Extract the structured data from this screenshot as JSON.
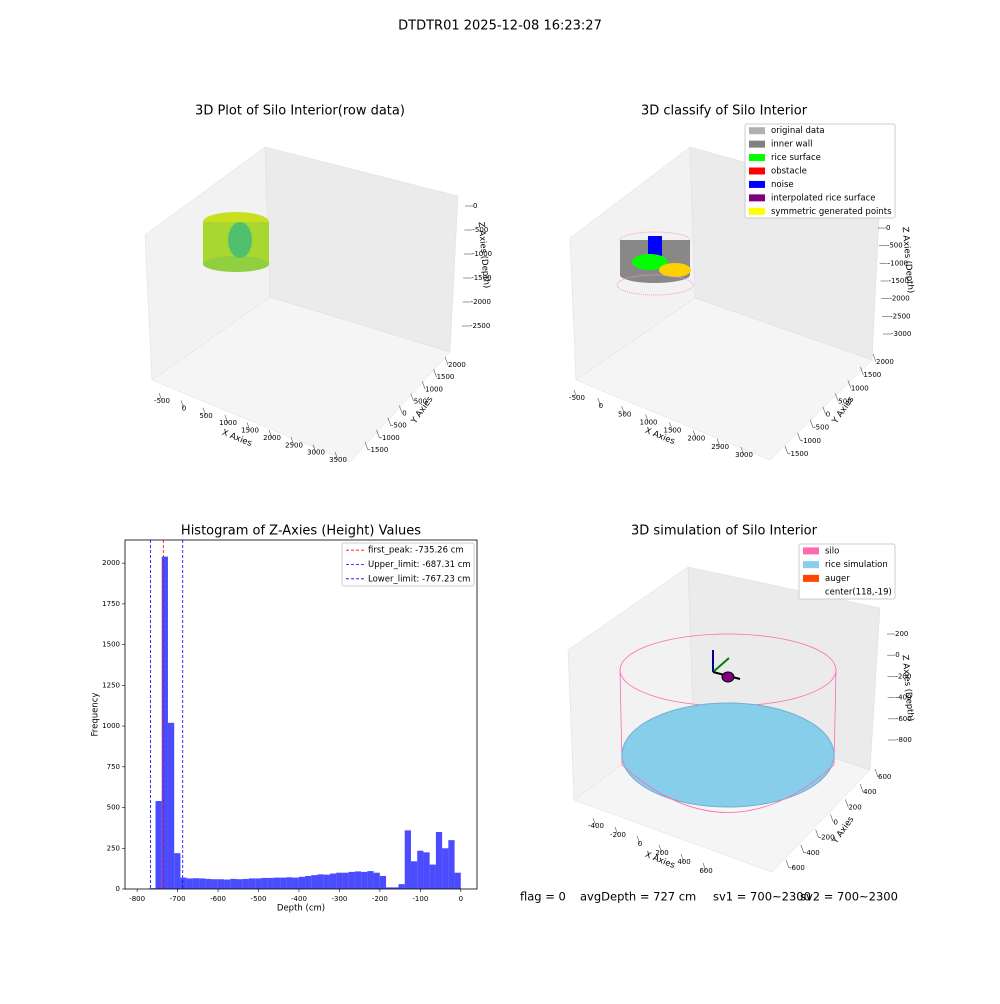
{
  "title": "DTDTR01 2025-12-08 16:23:27",
  "chart_data": [
    {
      "type": "scatter3d",
      "title": "3D Plot of Silo Interior(row data)",
      "xlabel": "X Axies",
      "ylabel": "Y Axies",
      "zlabel": "Z Axies (Depth)",
      "xticks": [
        -500,
        0,
        500,
        1000,
        1500,
        2000,
        2500,
        3000,
        3500
      ],
      "yticks": [
        -1500,
        -1000,
        -500,
        0,
        500,
        1000,
        1500,
        2000
      ],
      "zticks": [
        -2500,
        -2000,
        -1500,
        -1000,
        -500,
        0
      ]
    },
    {
      "type": "scatter3d",
      "title": "3D classify of Silo Interior",
      "xlabel": "X Axies",
      "ylabel": "Y Axies",
      "zlabel": "Z Axies (Depth)",
      "xticks": [
        -500,
        0,
        500,
        1000,
        1500,
        2000,
        2500,
        3000
      ],
      "yticks": [
        -1500,
        -1000,
        -500,
        0,
        500,
        1000,
        1500,
        2000
      ],
      "zticks": [
        -3000,
        -2500,
        -2000,
        -1500,
        -1000,
        -500,
        0
      ],
      "legend": [
        {
          "name": "original data",
          "color": "#b0b0b0"
        },
        {
          "name": "inner wall",
          "color": "#808080"
        },
        {
          "name": "rice surface",
          "color": "#00ff00"
        },
        {
          "name": "obstacle",
          "color": "#ff0000"
        },
        {
          "name": "noise",
          "color": "#0000ff"
        },
        {
          "name": "interpolated rice surface",
          "color": "#800080"
        },
        {
          "name": "symmetric generated points",
          "color": "#ffff00"
        }
      ]
    },
    {
      "type": "histogram",
      "title": "Histogram of Z-Axies (Height) Values",
      "xlabel": "Depth (cm)",
      "ylabel": "Frequency",
      "color": "#0000ff",
      "bins": [
        -770,
        -754.6,
        -739.2,
        -723.8,
        -708.4,
        -693,
        -677.6,
        -662.2,
        -646.8,
        -631.4,
        -616,
        -600.6,
        -585.2,
        -569.8,
        -554.4,
        -539,
        -523.6,
        -508.2,
        -492.8,
        -477.4,
        -462,
        -446.6,
        -431.2,
        -415.8,
        -400.4,
        -385,
        -369.6,
        -354.2,
        -338.8,
        -323.4,
        -308,
        -292.6,
        -277.2,
        -261.8,
        -246.4,
        -231,
        -215.6,
        -200.2,
        -184.8,
        -169.4,
        -154,
        -138.6,
        -123.2,
        -107.8,
        -92.4,
        -77,
        -61.6,
        -46.2,
        -30.8,
        -15.4,
        0
      ],
      "values": [
        5,
        540,
        2040,
        1020,
        220,
        70,
        65,
        66,
        65,
        62,
        60,
        60,
        58,
        62,
        60,
        62,
        65,
        65,
        68,
        68,
        70,
        70,
        72,
        70,
        75,
        80,
        85,
        90,
        88,
        95,
        100,
        100,
        105,
        108,
        105,
        110,
        100,
        80,
        10,
        10,
        30,
        360,
        170,
        235,
        225,
        150,
        350,
        250,
        300,
        100
      ],
      "xlim": [
        -830,
        40
      ],
      "ylim": [
        0,
        2142
      ],
      "xticks": [
        -800,
        -700,
        -600,
        -500,
        -400,
        -300,
        -200,
        -100,
        0
      ],
      "yticks": [
        0,
        250,
        500,
        750,
        1000,
        1250,
        1500,
        1750,
        2000
      ],
      "vlines": [
        {
          "label": "first_peak: -735.26 cm",
          "value": -735.26,
          "color": "#ff0000"
        },
        {
          "label": "Upper_limit: -687.31 cm",
          "value": -687.31,
          "color": "#0000ff"
        },
        {
          "label": "Lower_limit: -767.23 cm",
          "value": -767.23,
          "color": "#0000ff"
        }
      ]
    },
    {
      "type": "surface3d",
      "title": "3D simulation of Silo Interior",
      "xlabel": "X Axies",
      "ylabel": "Y Axies",
      "zlabel": "Z Axies (Depth)",
      "xticks": [
        -400,
        -200,
        0,
        200,
        400,
        600
      ],
      "yticks": [
        -600,
        -400,
        -200,
        0,
        200,
        400,
        600
      ],
      "zticks": [
        -800,
        -600,
        -400,
        -200,
        0,
        200
      ],
      "legend": [
        {
          "name": "silo",
          "color": "#ff69b4"
        },
        {
          "name": "rice simulation",
          "color": "#87ceeb"
        },
        {
          "name": "auger",
          "color": "#ff4500"
        },
        {
          "name": "center(118,-19)",
          "color": "#ffffff"
        }
      ]
    }
  ],
  "footer": [
    "flag = 0",
    "avgDepth = 727 cm",
    "sv1 = 700~2300",
    "sv2 = 700~2300"
  ]
}
